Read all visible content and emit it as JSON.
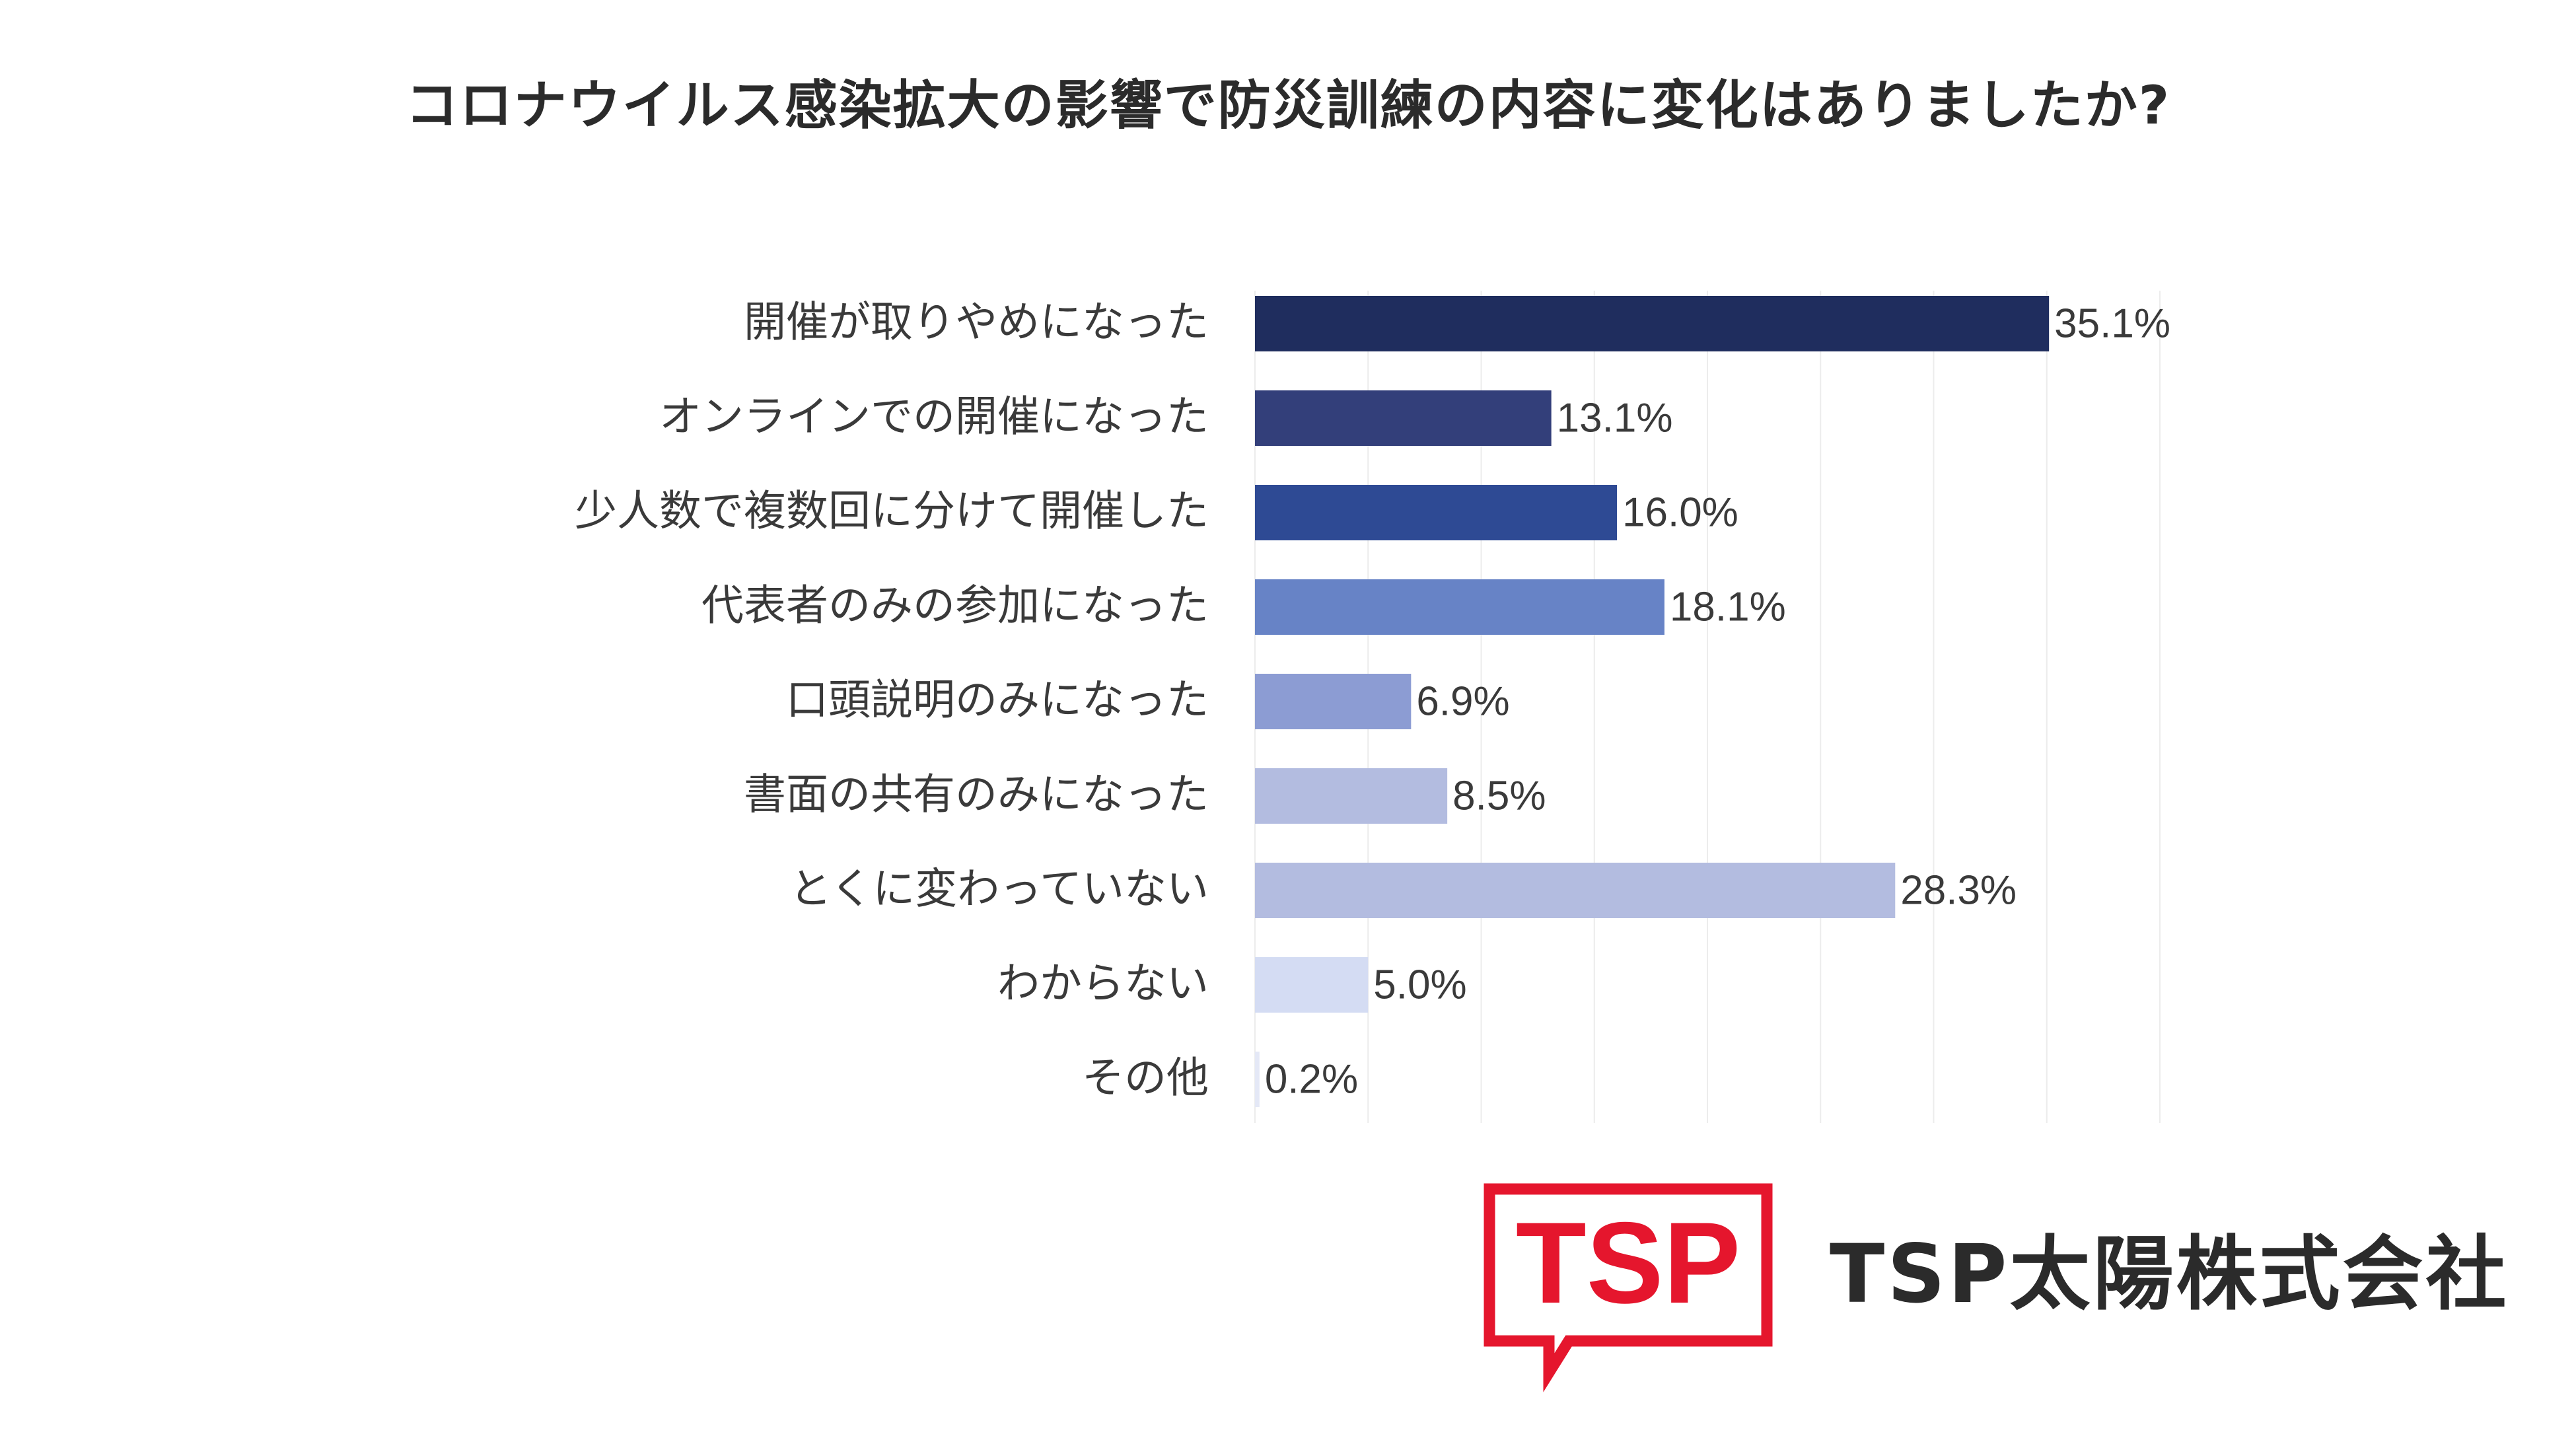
{
  "chart_data": {
    "type": "bar",
    "orientation": "horizontal",
    "title": "コロナウイルス感染拡大の影響で防災訓練の内容に変化はありましたか?",
    "xlabel": "",
    "ylabel": "",
    "xlim": [
      0,
      40
    ],
    "grid": true,
    "legend": "none",
    "categories": [
      "開催が取りやめになった",
      "オンラインでの開催になった",
      "少人数で複数回に分けて開催した",
      "代表者のみの参加になった",
      "口頭説明のみになった",
      "書面の共有のみになった",
      "とくに変わっていない",
      "わからない",
      "その他"
    ],
    "values": [
      35.1,
      13.1,
      16.0,
      18.1,
      6.9,
      8.5,
      28.3,
      5.0,
      0.2
    ],
    "value_labels": [
      "35.1%",
      "13.1%",
      "16.0%",
      "18.1%",
      "6.9%",
      "8.5%",
      "28.3%",
      "5.0%",
      "0.2%"
    ],
    "colors": [
      "#1f2d5e",
      "#333f7a",
      "#2e4a94",
      "#6783c6",
      "#8c9cd3",
      "#b3bce0",
      "#b3bce0",
      "#d4dcf3",
      "#e4e8f6"
    ]
  },
  "branding": {
    "logo_text": "TSP",
    "logo_color": "#e5162d",
    "company_name": "TSP太陽株式会社"
  }
}
